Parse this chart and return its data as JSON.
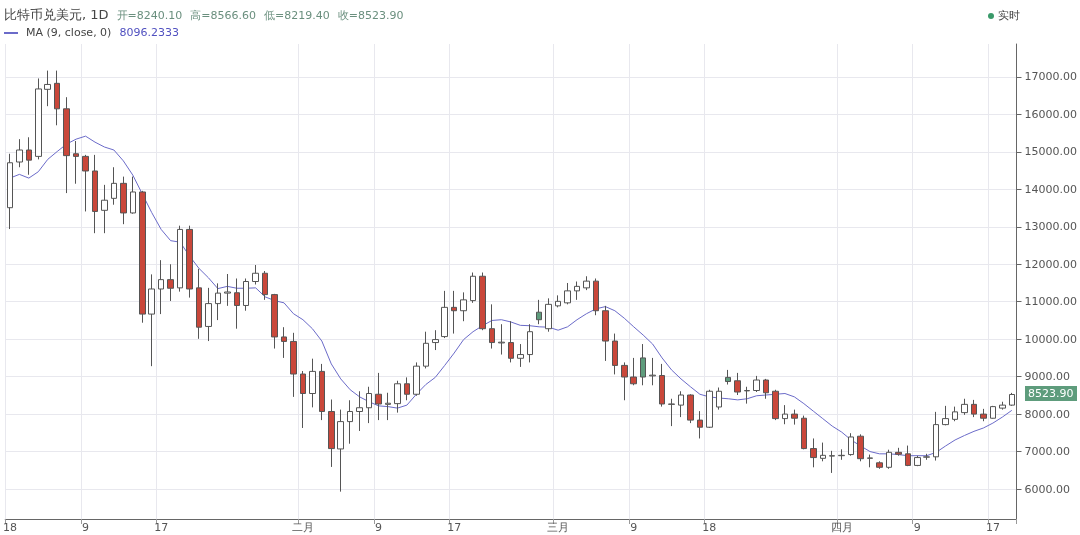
{
  "chart_data": {
    "type": "candlestick",
    "title": "比特币兑美元, 1D",
    "annotations": [
      "开=8240.10",
      "高=8566.60",
      "低=8219.40",
      "收=8523.90",
      "8096.2333",
      "实时",
      "8523.90"
    ],
    "categories": [
      "18",
      null,
      null,
      null,
      null,
      null,
      null,
      null,
      "9",
      null,
      null,
      null,
      null,
      null,
      null,
      null,
      "17",
      null,
      null,
      null,
      null,
      null,
      null,
      null,
      null,
      null,
      null,
      null,
      null,
      null,
      null,
      "二月",
      null,
      null,
      null,
      null,
      null,
      null,
      null,
      "9",
      null,
      null,
      null,
      null,
      null,
      null,
      null,
      "17",
      null,
      null,
      null,
      null,
      null,
      null,
      null,
      null,
      null,
      null,
      "三月",
      null,
      null,
      null,
      null,
      null,
      null,
      null,
      "9",
      null,
      null,
      null,
      null,
      null,
      null,
      null,
      "18",
      null,
      null,
      null,
      null,
      null,
      null,
      null,
      null,
      null,
      null,
      null,
      null,
      null,
      "四月",
      null,
      null,
      null,
      null,
      null,
      null,
      null,
      "9",
      null,
      null,
      null,
      null,
      null,
      null,
      null,
      "17",
      null,
      null
    ],
    "ohlc": [
      [
        13510,
        14950,
        12940,
        14710
      ],
      [
        14730,
        15340,
        14590,
        15050
      ],
      [
        15050,
        15390,
        14390,
        14780
      ],
      [
        14880,
        16960,
        14800,
        16680
      ],
      [
        16670,
        17170,
        16220,
        16800
      ],
      [
        16830,
        17170,
        15710,
        16150
      ],
      [
        16150,
        16460,
        13900,
        14900
      ],
      [
        14950,
        15290,
        14150,
        14880
      ],
      [
        14880,
        14920,
        13410,
        14490
      ],
      [
        14490,
        14920,
        12830,
        13410
      ],
      [
        13440,
        14120,
        12830,
        13710
      ],
      [
        13760,
        14590,
        13590,
        14160
      ],
      [
        14160,
        14340,
        13070,
        13370
      ],
      [
        13370,
        14340,
        13350,
        13930
      ],
      [
        13930,
        13960,
        10440,
        10670
      ],
      [
        10670,
        11730,
        9280,
        11340
      ],
      [
        11340,
        12110,
        10670,
        11590
      ],
      [
        11590,
        12000,
        11020,
        11360
      ],
      [
        11370,
        13030,
        11270,
        12930
      ],
      [
        12930,
        13030,
        11110,
        11340
      ],
      [
        11370,
        11880,
        10010,
        10320
      ],
      [
        10340,
        11370,
        9950,
        10950
      ],
      [
        10950,
        11490,
        10510,
        11230
      ],
      [
        11230,
        11740,
        10890,
        11260
      ],
      [
        11240,
        11620,
        10280,
        10900
      ],
      [
        10900,
        11620,
        10760,
        11540
      ],
      [
        11540,
        11980,
        11460,
        11760
      ],
      [
        11760,
        11820,
        11050,
        11190
      ],
      [
        11190,
        11210,
        9750,
        10060
      ],
      [
        10060,
        10320,
        9500,
        9940
      ],
      [
        9940,
        10170,
        8460,
        9070
      ],
      [
        9070,
        9150,
        7630,
        8550
      ],
      [
        8550,
        9480,
        8180,
        9140
      ],
      [
        9140,
        9340,
        7840,
        8070
      ],
      [
        8070,
        8390,
        6590,
        7080
      ],
      [
        7070,
        8120,
        5930,
        7800
      ],
      [
        7800,
        8370,
        7210,
        8070
      ],
      [
        8070,
        8610,
        7550,
        8170
      ],
      [
        8170,
        8730,
        7760,
        8550
      ],
      [
        8530,
        9100,
        7840,
        8270
      ],
      [
        8260,
        8570,
        7840,
        8290
      ],
      [
        8280,
        8890,
        8040,
        8810
      ],
      [
        8810,
        8980,
        8370,
        8530
      ],
      [
        8530,
        9380,
        8490,
        9280
      ],
      [
        9280,
        10200,
        9220,
        9890
      ],
      [
        9910,
        10240,
        9710,
        9990
      ],
      [
        10070,
        11290,
        10030,
        10850
      ],
      [
        10850,
        11290,
        10150,
        10760
      ],
      [
        10760,
        11250,
        10480,
        11050
      ],
      [
        11030,
        11780,
        10970,
        11680
      ],
      [
        11680,
        11780,
        10240,
        10280
      ],
      [
        10280,
        10930,
        9750,
        9910
      ],
      [
        9900,
        10400,
        9590,
        9920
      ],
      [
        9910,
        10480,
        9380,
        9490
      ],
      [
        9490,
        9870,
        9260,
        9590
      ],
      [
        9590,
        10400,
        9380,
        10200
      ],
      [
        10720,
        11050,
        10400,
        10520
      ],
      [
        10280,
        11090,
        10200,
        10930
      ],
      [
        10890,
        11170,
        10850,
        11010
      ],
      [
        10970,
        11500,
        10930,
        11290
      ],
      [
        11290,
        11540,
        11050,
        11410
      ],
      [
        11370,
        11680,
        11310,
        11550
      ],
      [
        11550,
        11620,
        10640,
        10760
      ],
      [
        10760,
        10890,
        9420,
        9950
      ],
      [
        9950,
        10150,
        9060,
        9300
      ],
      [
        9300,
        9380,
        8370,
        8990
      ],
      [
        8990,
        9500,
        8770,
        8810
      ],
      [
        9500,
        9870,
        8770,
        8990
      ],
      [
        9020,
        9500,
        8770,
        9040
      ],
      [
        9030,
        9340,
        8200,
        8270
      ],
      [
        8260,
        8410,
        7680,
        8270
      ],
      [
        8240,
        8610,
        7920,
        8510
      ],
      [
        8510,
        8530,
        7760,
        7840
      ],
      [
        7840,
        8080,
        7350,
        7650
      ],
      [
        7650,
        8650,
        7630,
        8610
      ],
      [
        8190,
        8710,
        8120,
        8610
      ],
      [
        8980,
        9180,
        8790,
        8870
      ],
      [
        8890,
        9100,
        8510,
        8590
      ],
      [
        8620,
        8730,
        8280,
        8630
      ],
      [
        8630,
        9020,
        8590,
        8910
      ],
      [
        8910,
        8940,
        8410,
        8570
      ],
      [
        8610,
        8650,
        7840,
        7880
      ],
      [
        7880,
        8240,
        7730,
        8000
      ],
      [
        8000,
        8120,
        7720,
        7890
      ],
      [
        7890,
        7960,
        7060,
        7080
      ],
      [
        7080,
        7350,
        6580,
        6840
      ],
      [
        6820,
        7240,
        6740,
        6900
      ],
      [
        6880,
        7020,
        6430,
        6890
      ],
      [
        6890,
        7060,
        6780,
        6900
      ],
      [
        6920,
        7490,
        6890,
        7390
      ],
      [
        7410,
        7460,
        6740,
        6810
      ],
      [
        6820,
        6920,
        6580,
        6830
      ],
      [
        6700,
        6740,
        6540,
        6580
      ],
      [
        6580,
        7050,
        6540,
        6980
      ],
      [
        6980,
        7100,
        6890,
        6930
      ],
      [
        6940,
        7160,
        6610,
        6630
      ],
      [
        6630,
        6890,
        6610,
        6840
      ],
      [
        6850,
        6940,
        6780,
        6860
      ],
      [
        6860,
        8060,
        6760,
        7720
      ],
      [
        7720,
        8220,
        7700,
        7880
      ],
      [
        7860,
        8200,
        7810,
        8060
      ],
      [
        8040,
        8410,
        7980,
        8260
      ],
      [
        8260,
        8380,
        7920,
        8000
      ],
      [
        8000,
        8140,
        7810,
        7890
      ],
      [
        7890,
        8220,
        7880,
        8200
      ],
      [
        8160,
        8330,
        8120,
        8240
      ],
      [
        8240.1,
        8566.6,
        8219.4,
        8523.9
      ]
    ],
    "colors": [
      "#ffffff",
      "#ffffff",
      "#c9473a",
      "#ffffff",
      "#ffffff",
      "#c9473a",
      "#c9473a",
      "#c9473a",
      "#c9473a",
      "#c9473a",
      "#ffffff",
      "#ffffff",
      "#c9473a",
      "#ffffff",
      "#c9473a",
      "#ffffff",
      "#ffffff",
      "#c9473a",
      "#ffffff",
      "#c9473a",
      "#c9473a",
      "#ffffff",
      "#ffffff",
      "#ffffff",
      "#c9473a",
      "#ffffff",
      "#ffffff",
      "#c9473a",
      "#c9473a",
      "#c9473a",
      "#c9473a",
      "#c9473a",
      "#ffffff",
      "#c9473a",
      "#c9473a",
      "#ffffff",
      "#ffffff",
      "#ffffff",
      "#ffffff",
      "#c9473a",
      "#ffffff",
      "#ffffff",
      "#c9473a",
      "#ffffff",
      "#ffffff",
      "#ffffff",
      "#ffffff",
      "#c9473a",
      "#ffffff",
      "#ffffff",
      "#c9473a",
      "#c9473a",
      "#ffffff",
      "#c9473a",
      "#ffffff",
      "#ffffff",
      "#5e9c7c",
      "#ffffff",
      "#ffffff",
      "#ffffff",
      "#ffffff",
      "#ffffff",
      "#c9473a",
      "#c9473a",
      "#c9473a",
      "#c9473a",
      "#c9473a",
      "#5e9c7c",
      "#ffffff",
      "#c9473a",
      "#ffffff",
      "#ffffff",
      "#c9473a",
      "#c9473a",
      "#ffffff",
      "#ffffff",
      "#5e9c7c",
      "#c9473a",
      "#ffffff",
      "#ffffff",
      "#c9473a",
      "#c9473a",
      "#ffffff",
      "#c9473a",
      "#c9473a",
      "#c9473a",
      "#ffffff",
      "#ffffff",
      "#ffffff",
      "#ffffff",
      "#c9473a",
      "#ffffff",
      "#c9473a",
      "#ffffff",
      "#c9473a",
      "#c9473a",
      "#ffffff",
      "#ffffff",
      "#ffffff",
      "#ffffff",
      "#ffffff",
      "#ffffff",
      "#c9473a",
      "#c9473a",
      "#ffffff",
      "#ffffff",
      "#ffffff"
    ],
    "series": [
      {
        "type": "line",
        "name": "MA (9, close, 0)",
        "color": "#6b6bc9",
        "values": [
          14300,
          14400,
          14300,
          14470,
          14800,
          15010,
          15210,
          15340,
          15420,
          15260,
          15130,
          15050,
          14760,
          14380,
          13880,
          13380,
          12930,
          12630,
          12590,
          12220,
          11890,
          11640,
          11350,
          11410,
          11360,
          11360,
          11370,
          11130,
          11030,
          10970,
          10680,
          10520,
          10280,
          9950,
          9340,
          8940,
          8650,
          8460,
          8330,
          8220,
          8200,
          8160,
          8240,
          8530,
          8790,
          8980,
          9300,
          9630,
          9990,
          10200,
          10360,
          10500,
          10520,
          10460,
          10370,
          10360,
          10330,
          10320,
          10240,
          10330,
          10520,
          10680,
          10810,
          10870,
          10760,
          10560,
          10330,
          10110,
          9870,
          9500,
          9180,
          8940,
          8730,
          8530,
          8460,
          8430,
          8410,
          8380,
          8410,
          8490,
          8510,
          8530,
          8550,
          8460,
          8280,
          8080,
          7880,
          7680,
          7520,
          7310,
          7150,
          7000,
          6940,
          6940,
          6920,
          6890,
          6890,
          6890,
          6980,
          7150,
          7310,
          7430,
          7540,
          7630,
          7760,
          7920,
          8100
        ]
      }
    ],
    "ylim": [
      5200,
      17880
    ],
    "yticks": [
      {
        "value": 6000,
        "label": "6000.00"
      },
      {
        "value": 7000,
        "label": "7000.00"
      },
      {
        "value": 8000,
        "label": "8000.00"
      },
      {
        "value": 9000,
        "label": "9000.00"
      },
      {
        "value": 10000,
        "label": "10000.00"
      },
      {
        "value": 11000,
        "label": "11000.00"
      },
      {
        "value": 12000,
        "label": "12000.00"
      },
      {
        "value": 13000,
        "label": "13000.00"
      },
      {
        "value": 14000,
        "label": "14000.00"
      },
      {
        "value": 15000,
        "label": "15000.00"
      },
      {
        "value": 16000,
        "label": "16000.00"
      },
      {
        "value": 17000,
        "label": "17000.00"
      }
    ],
    "grid": true,
    "legend": "top left"
  }
}
